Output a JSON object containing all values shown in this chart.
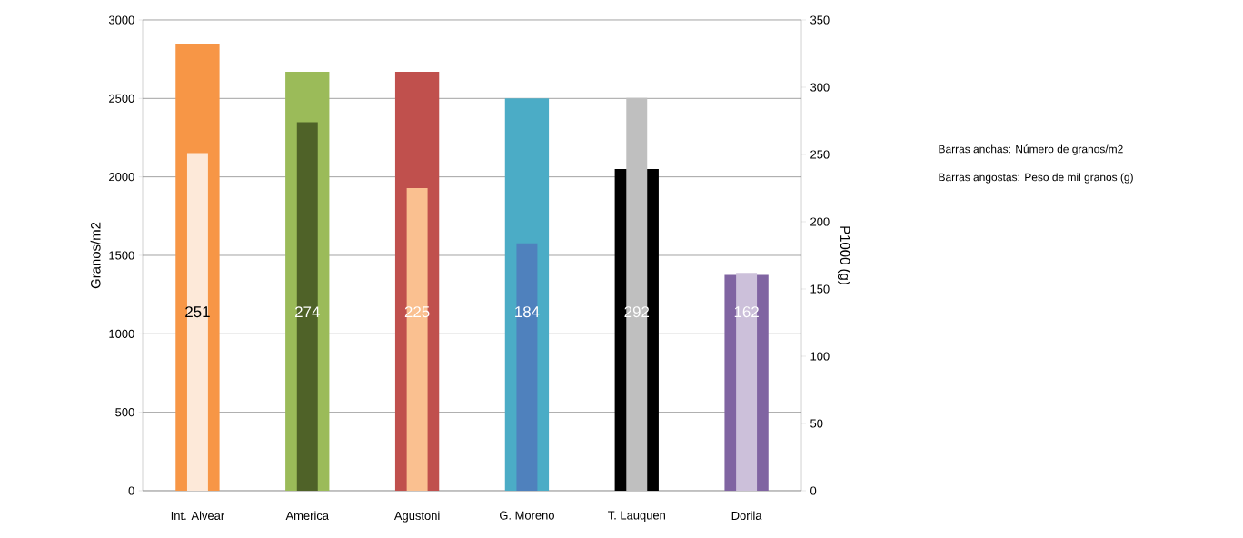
{
  "chart_data": {
    "type": "bar",
    "categories": [
      "Int. Alvear",
      "America",
      "Agustoni",
      "G. Moreno",
      "T. Lauquen",
      "Dorila"
    ],
    "ylabel": "Granos/m2",
    "y2label": "P1000 (g)",
    "ylim": [
      0,
      3000
    ],
    "yticks": [
      0,
      500,
      1000,
      1500,
      2000,
      2500,
      3000
    ],
    "y2lim": [
      0,
      350
    ],
    "y2ticks": [
      0,
      50,
      100,
      150,
      200,
      250,
      300,
      350
    ],
    "grid": "y",
    "annotations": [
      "Barras anchas: Número de granos/m2",
      "Barras angostas: Peso de mil granos (g)"
    ],
    "series": [
      {
        "colors": [
          "#f79646",
          "#9bbb59",
          "#c0504d",
          "#4bacc6",
          "#000000",
          "#8064a2"
        ],
        "values": [
          2850,
          2670,
          2670,
          2500,
          2050,
          1375
        ]
      },
      {
        "axis": "y2",
        "colors": [
          "#fde9d9",
          "#4f6228",
          "#fac090",
          "#4f81bd",
          "#bfbfbf",
          "#ccc0da"
        ],
        "values": [
          251,
          274,
          225,
          184,
          292,
          162
        ],
        "value_labels": [
          "251",
          "274",
          "225",
          "184",
          "292",
          "162"
        ]
      }
    ]
  }
}
